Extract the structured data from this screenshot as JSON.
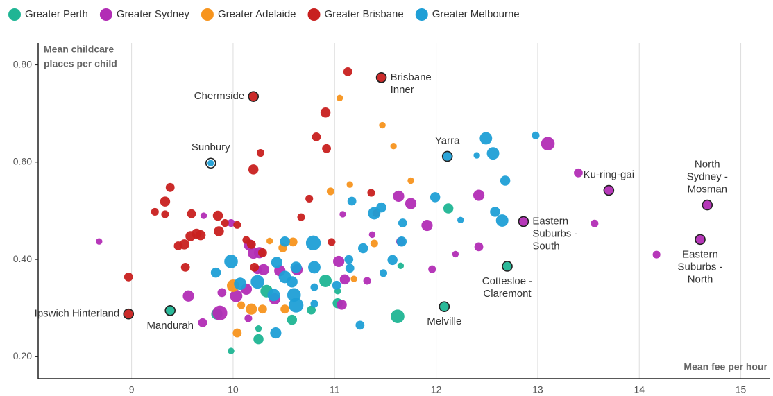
{
  "chart_data": {
    "type": "bubble",
    "legend_position": "top",
    "grid": "x",
    "xlim": [
      8.08,
      15.29
    ],
    "ylim": [
      0.155,
      0.845
    ],
    "xticks": [
      9,
      10,
      11,
      12,
      13,
      14,
      15
    ],
    "yticks": [
      {
        "value": 0.2,
        "label": "0.20"
      },
      {
        "value": 0.4,
        "label": "0.40"
      },
      {
        "value": 0.6,
        "label": "0.60"
      },
      {
        "value": 0.8,
        "label": "0.80"
      }
    ],
    "y_label": [
      "Mean childcare",
      "places per child"
    ],
    "x_label": "Mean fee per hour",
    "series": [
      {
        "name": "Greater Perth",
        "color": "#1fb594",
        "x": [
          12.12,
          10.91,
          10.33,
          10.25,
          10.25,
          9.98,
          10.58,
          10.77,
          11.03,
          11.03,
          11.65,
          11.62,
          9.84,
          12.7,
          12.08,
          9.38
        ],
        "y": [
          0.505,
          0.356,
          0.335,
          0.258,
          0.236,
          0.212,
          0.276,
          0.296,
          0.31,
          0.335,
          0.387,
          0.283,
          0.288,
          0.386,
          0.303,
          0.295
        ],
        "sizes": [
          5,
          7,
          7,
          2,
          5,
          2,
          5,
          4,
          5,
          2,
          2,
          8,
          6,
          4,
          4,
          5
        ]
      },
      {
        "name": "Greater Sydney",
        "color": "#b22db5",
        "x": [
          13.1,
          11.63,
          11.75,
          11.91,
          11.08,
          11.37,
          11.65,
          11.96,
          12.19,
          12.42,
          12.42,
          13.56,
          14.17,
          13.4,
          8.68,
          9.71,
          9.98,
          10.16,
          10.26,
          10.3,
          10.46,
          10.63,
          11.04,
          11.1,
          11.32,
          11.07,
          9.56,
          9.7,
          9.89,
          9.87,
          10.15,
          10.13,
          10.41,
          10.03,
          10.24,
          10.2,
          13.7,
          14.67,
          12.86,
          14.6
        ],
        "y": [
          0.638,
          0.53,
          0.515,
          0.47,
          0.493,
          0.451,
          0.437,
          0.38,
          0.411,
          0.532,
          0.426,
          0.474,
          0.41,
          0.578,
          0.437,
          0.49,
          0.475,
          0.43,
          0.414,
          0.379,
          0.377,
          0.379,
          0.396,
          0.359,
          0.356,
          0.307,
          0.325,
          0.27,
          0.332,
          0.29,
          0.279,
          0.339,
          0.319,
          0.325,
          0.379,
          0.413,
          0.542,
          0.512,
          0.478,
          0.441
        ],
        "sizes": [
          8,
          6,
          6,
          6,
          2,
          2,
          4,
          3,
          2,
          6,
          4,
          3,
          3,
          4,
          2,
          2,
          3,
          6,
          6,
          6,
          6,
          6,
          6,
          5,
          3,
          5,
          6,
          4,
          4,
          9,
          3,
          6,
          6,
          7,
          4,
          6,
          5,
          4,
          5,
          5
        ]
      },
      {
        "name": "Greater Adelaide",
        "color": "#f7941d",
        "x": [
          11.05,
          11.47,
          11.58,
          11.75,
          10.96,
          11.15,
          11.39,
          10.36,
          10.49,
          10.59,
          10.0,
          10.08,
          10.18,
          10.29,
          10.51,
          10.04,
          11.19
        ],
        "y": [
          0.732,
          0.676,
          0.633,
          0.562,
          0.54,
          0.554,
          0.433,
          0.438,
          0.424,
          0.436,
          0.346,
          0.306,
          0.298,
          0.298,
          0.298,
          0.249,
          0.36
        ],
        "sizes": [
          2,
          2,
          2,
          2,
          3,
          2,
          3,
          2,
          4,
          4,
          7,
          3,
          6,
          4,
          4,
          4,
          2
        ]
      },
      {
        "name": "Greater Brisbane",
        "color": "#c8201f",
        "x": [
          11.13,
          10.91,
          10.82,
          10.92,
          10.27,
          10.2,
          9.38,
          9.33,
          9.23,
          9.33,
          9.59,
          9.58,
          9.64,
          9.68,
          9.85,
          9.86,
          9.92,
          10.04,
          10.13,
          9.52,
          9.46,
          9.53,
          8.97,
          10.21,
          10.29,
          10.67,
          10.75,
          10.97,
          11.36,
          11.41,
          10.18,
          11.46,
          10.2,
          8.97
        ],
        "y": [
          0.786,
          0.702,
          0.652,
          0.628,
          0.619,
          0.585,
          0.548,
          0.519,
          0.498,
          0.493,
          0.494,
          0.448,
          0.453,
          0.45,
          0.49,
          0.458,
          0.475,
          0.471,
          0.44,
          0.431,
          0.428,
          0.384,
          0.364,
          0.384,
          0.414,
          0.487,
          0.525,
          0.436,
          0.537,
          0.495,
          0.431,
          0.774,
          0.735,
          0.288
        ],
        "sizes": [
          4,
          5,
          4,
          4,
          3,
          5,
          4,
          5,
          3,
          3,
          4,
          5,
          5,
          5,
          5,
          5,
          3,
          3,
          3,
          5,
          4,
          4,
          4,
          4,
          4,
          3,
          3,
          3,
          3,
          3,
          4,
          4,
          4,
          4
        ]
      },
      {
        "name": "Greater Melbourne",
        "color": "#1f9fd6",
        "x": [
          12.49,
          12.56,
          12.98,
          12.4,
          12.68,
          12.58,
          12.65,
          12.24,
          11.99,
          11.46,
          11.39,
          11.17,
          11.67,
          11.66,
          11.57,
          11.48,
          11.28,
          11.14,
          11.15,
          10.79,
          10.51,
          10.43,
          9.98,
          9.83,
          10.07,
          10.24,
          10.4,
          10.58,
          10.6,
          10.62,
          10.62,
          10.8,
          10.8,
          11.02,
          10.8,
          11.25,
          10.42,
          10.51,
          12.11,
          9.78
        ],
        "y": [
          0.649,
          0.618,
          0.655,
          0.614,
          0.562,
          0.498,
          0.48,
          0.481,
          0.528,
          0.507,
          0.495,
          0.52,
          0.475,
          0.437,
          0.399,
          0.372,
          0.423,
          0.4,
          0.382,
          0.434,
          0.437,
          0.394,
          0.396,
          0.373,
          0.35,
          0.354,
          0.327,
          0.354,
          0.327,
          0.306,
          0.384,
          0.384,
          0.343,
          0.347,
          0.309,
          0.265,
          0.249,
          0.364,
          0.612,
          0.598
        ],
        "sizes": [
          7,
          7,
          3,
          2,
          5,
          5,
          7,
          2,
          5,
          5,
          7,
          4,
          4,
          5,
          5,
          3,
          5,
          4,
          4,
          9,
          5,
          6,
          8,
          5,
          7,
          8,
          7,
          6,
          8,
          9,
          6,
          7,
          3,
          4,
          3,
          4,
          6,
          7,
          4,
          2
        ]
      }
    ],
    "annotations": [
      {
        "lines": [
          "Brisbane",
          "Inner"
        ],
        "x": 11.46,
        "y": 0.774,
        "position": "right"
      },
      {
        "lines": [
          "Chermside"
        ],
        "x": 10.2,
        "y": 0.735,
        "position": "left"
      },
      {
        "lines": [
          "Sunbury"
        ],
        "x": 9.78,
        "y": 0.598,
        "position": "above"
      },
      {
        "lines": [
          "Yarra"
        ],
        "x": 12.11,
        "y": 0.612,
        "position": "above"
      },
      {
        "lines": [
          "Ku-ring-gai"
        ],
        "x": 13.7,
        "y": 0.542,
        "position": "above"
      },
      {
        "lines": [
          "North",
          "Sydney -",
          "Mosman"
        ],
        "x": 14.67,
        "y": 0.512,
        "position": "above"
      },
      {
        "lines": [
          "Eastern",
          "Suburbs -",
          "South"
        ],
        "x": 12.86,
        "y": 0.478,
        "position": "right"
      },
      {
        "lines": [
          "Eastern",
          "Suburbs -",
          "North"
        ],
        "x": 14.6,
        "y": 0.441,
        "position": "below"
      },
      {
        "lines": [
          "Cottesloe -",
          "Claremont"
        ],
        "x": 12.7,
        "y": 0.386,
        "position": "below"
      },
      {
        "lines": [
          "Melville"
        ],
        "x": 12.08,
        "y": 0.303,
        "position": "below"
      },
      {
        "lines": [
          "Mandurah"
        ],
        "x": 9.38,
        "y": 0.295,
        "position": "below"
      },
      {
        "lines": [
          "Ipswich Hinterland"
        ],
        "x": 8.97,
        "y": 0.288,
        "position": "left"
      }
    ]
  }
}
